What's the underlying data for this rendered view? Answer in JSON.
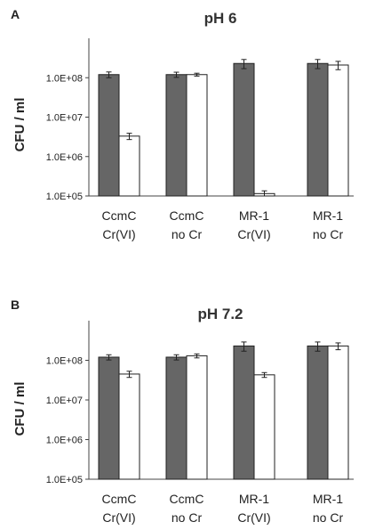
{
  "figure": {
    "panels": [
      "A",
      "B"
    ]
  },
  "chart_data": [
    {
      "type": "bar",
      "panel_label": "A",
      "title": "pH 6",
      "ylabel": "CFU / ml",
      "yscale": "log",
      "ylim": [
        100000,
        1000000000
      ],
      "yticks": [
        100000,
        1000000,
        10000000,
        100000000
      ],
      "ytick_labels": [
        "1.0E+05",
        "1.0E+06",
        "1.0E+07",
        "1.0E+08"
      ],
      "categories": [
        [
          "CcmC",
          "Cr(VI)"
        ],
        [
          "CcmC",
          "no Cr"
        ],
        [
          "MR-1",
          "Cr(VI)"
        ],
        [
          "MR-1",
          "no Cr"
        ]
      ],
      "series": [
        {
          "color": "#666666",
          "values": [
            120000000,
            120000000,
            230000000,
            230000000
          ],
          "errors": [
            20000000,
            18000000,
            60000000,
            60000000
          ]
        },
        {
          "color": "#ffffff",
          "values": [
            3300000,
            120000000,
            115000,
            210000000
          ],
          "errors": [
            600000,
            10000000,
            20000,
            50000000
          ]
        }
      ]
    },
    {
      "type": "bar",
      "panel_label": "B",
      "title": "pH 7.2",
      "ylabel": "CFU / ml",
      "yscale": "log",
      "ylim": [
        100000,
        1000000000
      ],
      "yticks": [
        100000,
        1000000,
        10000000,
        100000000
      ],
      "ytick_labels": [
        "1.0E+05",
        "1.0E+06",
        "1.0E+07",
        "1.0E+08"
      ],
      "categories": [
        [
          "CcmC",
          "Cr(VI)"
        ],
        [
          "CcmC",
          "no Cr"
        ],
        [
          "MR-1",
          "Cr(VI)"
        ],
        [
          "MR-1",
          "no Cr"
        ]
      ],
      "series": [
        {
          "color": "#666666",
          "values": [
            120000000,
            120000000,
            230000000,
            230000000
          ],
          "errors": [
            18000000,
            18000000,
            60000000,
            60000000
          ]
        },
        {
          "color": "#ffffff",
          "values": [
            45000000,
            130000000,
            43000000,
            230000000
          ],
          "errors": [
            8000000,
            15000000,
            6000000,
            45000000
          ]
        }
      ]
    }
  ]
}
